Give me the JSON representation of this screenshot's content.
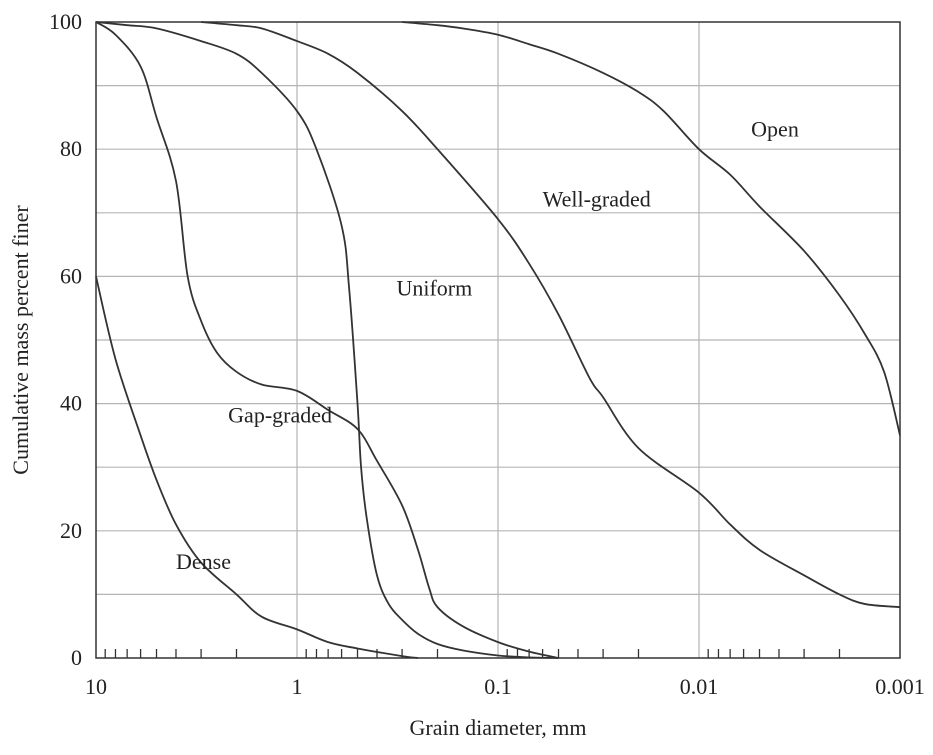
{
  "chart_data": {
    "type": "line",
    "xlabel": "Grain diameter, mm",
    "ylabel": "Cumulative mass percent finer",
    "x_scale": "log",
    "x_reversed": true,
    "xlim": [
      10,
      0.001
    ],
    "ylim": [
      0,
      100
    ],
    "grid": true,
    "legend": "none",
    "x_ticks": [
      {
        "value": 10,
        "label": "10"
      },
      {
        "value": 1,
        "label": "1"
      },
      {
        "value": 0.1,
        "label": "0.1"
      },
      {
        "value": 0.01,
        "label": "0.01"
      },
      {
        "value": 0.001,
        "label": "0.001"
      }
    ],
    "y_ticks": [
      {
        "value": 0,
        "label": "0"
      },
      {
        "value": 20,
        "label": "20"
      },
      {
        "value": 40,
        "label": "40"
      },
      {
        "value": 60,
        "label": "60"
      },
      {
        "value": 80,
        "label": "80"
      },
      {
        "value": 100,
        "label": "100"
      }
    ],
    "series": [
      {
        "name": "Dense",
        "x": [
          10,
          8,
          6,
          5,
          4,
          3,
          2,
          1.5,
          1,
          0.7,
          0.5,
          0.3,
          0.25
        ],
        "y": [
          60,
          47,
          35,
          28,
          21,
          15,
          10,
          6.5,
          4.5,
          2.5,
          1.5,
          0.3,
          0
        ]
      },
      {
        "name": "Gap-graded",
        "x": [
          10,
          8,
          6,
          5,
          4,
          3.5,
          3,
          2.5,
          2,
          1.5,
          1,
          0.7,
          0.5,
          0.4,
          0.3,
          0.25,
          0.22,
          0.2,
          0.15,
          0.1,
          0.07,
          0.05
        ],
        "y": [
          100,
          98,
          93,
          85,
          75,
          60,
          53,
          48,
          45,
          43,
          42,
          39,
          36,
          31,
          24,
          17,
          11,
          8,
          5,
          2.5,
          1,
          0
        ]
      },
      {
        "name": "Uniform",
        "x": [
          10,
          7,
          5,
          3,
          2,
          1.5,
          1,
          0.8,
          0.6,
          0.55,
          0.5,
          0.48,
          0.45,
          0.4,
          0.35,
          0.3,
          0.25,
          0.2,
          0.15,
          0.1,
          0.07,
          0.05
        ],
        "y": [
          100,
          99.5,
          99,
          97,
          95,
          92,
          86,
          80,
          68,
          58,
          40,
          30,
          22,
          13,
          8.5,
          6,
          3.8,
          2.2,
          1.2,
          0.4,
          0.1,
          0
        ]
      },
      {
        "name": "Well-graded",
        "x": [
          3,
          2,
          1.5,
          1,
          0.7,
          0.5,
          0.3,
          0.2,
          0.1,
          0.07,
          0.05,
          0.035,
          0.03,
          0.02,
          0.01,
          0.007,
          0.005,
          0.003,
          0.002,
          0.0015,
          0.001
        ],
        "y": [
          100,
          99.5,
          99,
          97,
          95,
          92,
          86,
          80,
          69,
          62,
          54,
          44,
          41,
          33,
          26,
          21,
          17,
          13,
          10,
          8.5,
          8
        ]
      },
      {
        "name": "Open",
        "x": [
          0.3,
          0.2,
          0.15,
          0.1,
          0.07,
          0.05,
          0.03,
          0.02,
          0.015,
          0.01,
          0.007,
          0.005,
          0.003,
          0.002,
          0.0015,
          0.0012,
          0.001
        ],
        "y": [
          100,
          99.5,
          99,
          98,
          96.5,
          95,
          92,
          89,
          86,
          80,
          76,
          71,
          64,
          57,
          51,
          45,
          35
        ]
      }
    ],
    "annotations": [
      {
        "text": "Open",
        "x": 0.0055,
        "y": 82
      },
      {
        "text": "Well-graded",
        "x": 0.06,
        "y": 71
      },
      {
        "text": "Uniform",
        "x": 0.32,
        "y": 57
      },
      {
        "text": "Gap-graded",
        "x": 2.2,
        "y": 37
      },
      {
        "text": "Dense",
        "x": 4.0,
        "y": 14
      }
    ]
  }
}
